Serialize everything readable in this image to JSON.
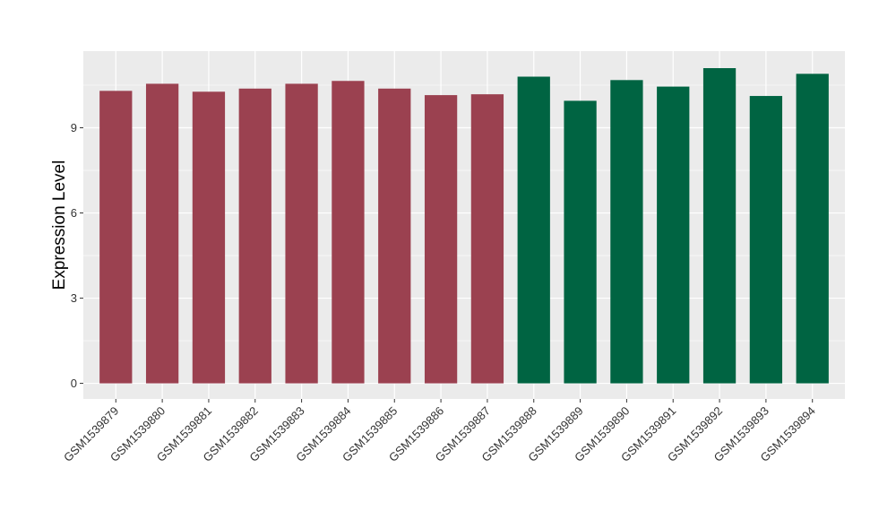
{
  "chart_data": {
    "type": "bar",
    "ylabel": "Expression Level",
    "xlabel": "",
    "ylim": [
      -0.55,
      11.7
    ],
    "yticks": [
      0,
      3,
      6,
      9
    ],
    "grid": true,
    "categories": [
      "GSM1539879",
      "GSM1539880",
      "GSM1539881",
      "GSM1539882",
      "GSM1539883",
      "GSM1539884",
      "GSM1539885",
      "GSM1539886",
      "GSM1539887",
      "GSM1539888",
      "GSM1539889",
      "GSM1539890",
      "GSM1539891",
      "GSM1539892",
      "GSM1539893",
      "GSM1539894"
    ],
    "values": [
      10.3,
      10.55,
      10.27,
      10.38,
      10.55,
      10.65,
      10.38,
      10.15,
      10.18,
      10.8,
      9.95,
      10.68,
      10.45,
      11.1,
      10.12,
      10.9
    ],
    "groups": [
      0,
      0,
      0,
      0,
      0,
      0,
      0,
      0,
      0,
      1,
      1,
      1,
      1,
      1,
      1,
      1
    ],
    "group_colors": [
      "#9b4150",
      "#006442"
    ]
  },
  "colors": {
    "panel_background": "#ebebeb",
    "gridline": "#ffffff",
    "tick_mark": "#333333"
  }
}
